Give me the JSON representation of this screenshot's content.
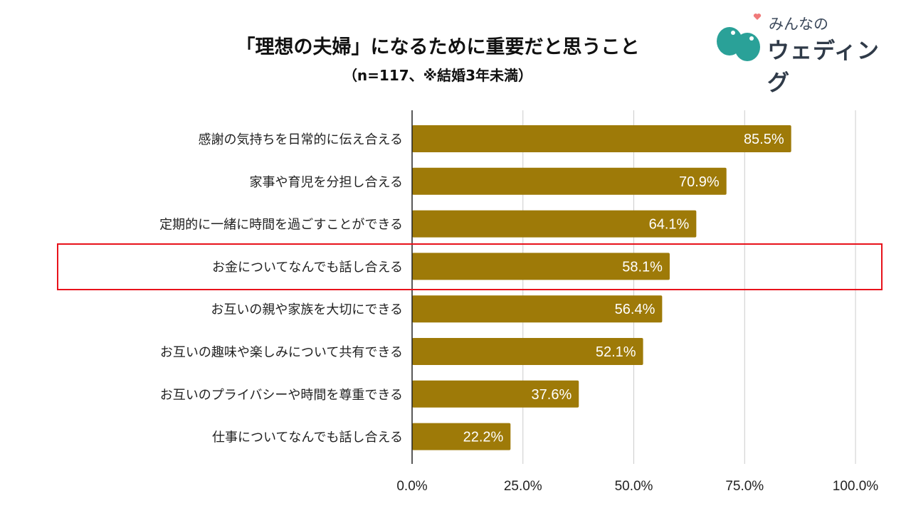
{
  "title": "「理想の夫婦」になるために重要だと思うこと",
  "subtitle": "（n=117、※結婚3年未満）",
  "logo": {
    "top": "みんなの",
    "main": "ウェディング",
    "color": "#2aa198",
    "heart_color": "#f07a7a"
  },
  "highlight": {
    "category": "お金についてなんでも話し合える",
    "color": "#e8121b"
  },
  "chart_data": {
    "type": "bar",
    "orientation": "horizontal",
    "categories": [
      "感謝の気持ちを日常的に伝え合える",
      "家事や育児を分担し合える",
      "定期的に一緒に時間を過ごすことができる",
      "お金についてなんでも話し合える",
      "お互いの親や家族を大切にできる",
      "お互いの趣味や楽しみについて共有できる",
      "お互いのプライバシーや時間を尊重できる",
      "仕事についてなんでも話し合える"
    ],
    "values": [
      85.5,
      70.9,
      64.1,
      58.1,
      56.4,
      52.1,
      37.6,
      22.2
    ],
    "data_labels": [
      "85.5%",
      "70.9%",
      "64.1%",
      "58.1%",
      "56.4%",
      "52.1%",
      "37.6%",
      "22.2%"
    ],
    "xlim": [
      0,
      100
    ],
    "ticks": [
      "0.0%",
      "25.0%",
      "50.0%",
      "75.0%",
      "100.0%"
    ],
    "tick_values": [
      0,
      25,
      50,
      75,
      100
    ],
    "grid": true,
    "bar_color": "#9e7a08"
  }
}
